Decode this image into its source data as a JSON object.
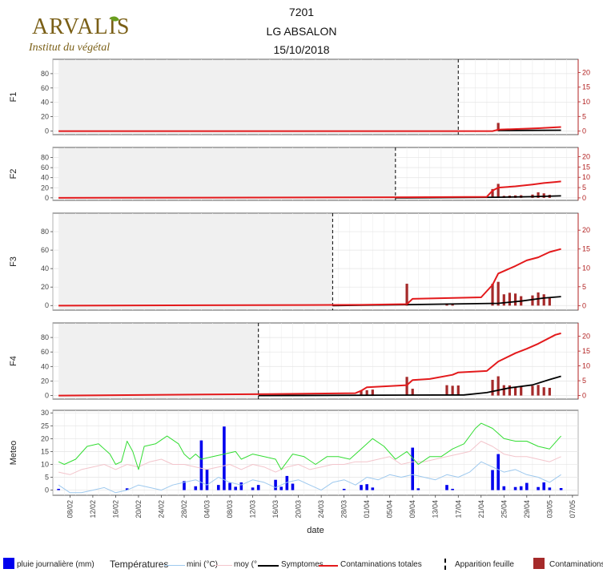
{
  "header": {
    "logo_text": "ARVALIS",
    "logo_sub": "Institut du végétal",
    "title_lines": [
      "7201",
      "LG ABSALON",
      "15/10/2018"
    ]
  },
  "colors": {
    "symptomes": "#000000",
    "contaminations_totales": "#e31a1c",
    "contaminations": "#a52a2a",
    "pluie": "#0000ee",
    "temp_mini": "#9ec9ee",
    "temp_moy": "#f3c5cc",
    "temp_maxi": "#33dd33",
    "shade": "#f0f0f0",
    "right_axis": "#b22222"
  },
  "legend": {
    "pluie": "pluie journalière (mm)",
    "temperatures_title": "Températures",
    "mini": "mini (°C)",
    "moy": "moy (°",
    "symptomes": "Symptomes",
    "contam_totales": "Contaminations totales",
    "apparition": "Apparition feuille",
    "contaminations": "Contaminations"
  },
  "chart_data": {
    "type": "line",
    "xlabel": "date",
    "x_range": [
      "2018-02-05",
      "2018-05-08"
    ],
    "x_ticks": [
      "08/02",
      "12/02",
      "16/02",
      "20/02",
      "24/02",
      "28/02",
      "04/03",
      "08/03",
      "12/03",
      "16/03",
      "20/03",
      "24/03",
      "28/03",
      "01/04",
      "05/04",
      "09/04",
      "13/04",
      "17/04",
      "21/04",
      "25/04",
      "29/04",
      "03/05",
      "07/05"
    ],
    "panels": [
      {
        "label": "F1",
        "left_ticks": [
          0,
          20,
          40,
          60,
          80
        ],
        "right_ticks": [
          0,
          5,
          10,
          15,
          20
        ],
        "left_range": [
          -5,
          100
        ],
        "right_range": [
          -1.2,
          24.5
        ],
        "apparition_feuille": "2018-04-17",
        "shade_range": [
          "2018-02-06",
          "2018-04-17"
        ],
        "contaminations_totales": {
          "x": [
            "2018-02-06",
            "2018-04-23",
            "2018-04-24",
            "2018-05-01",
            "2018-05-05"
          ],
          "y": [
            0,
            0,
            0.5,
            1.0,
            1.4
          ]
        },
        "symptomes": {
          "x": [
            "2018-04-24",
            "2018-05-05"
          ],
          "y": [
            0.2,
            0.3
          ]
        },
        "contaminations": {
          "x": [
            "2018-04-24"
          ],
          "y": [
            2.8
          ]
        }
      },
      {
        "label": "F2",
        "left_ticks": [
          0,
          20,
          40,
          60,
          80
        ],
        "right_ticks": [
          0,
          5,
          10,
          15,
          20
        ],
        "left_range": [
          -5,
          100
        ],
        "right_range": [
          -1.2,
          24.5
        ],
        "apparition_feuille": "2018-04-06",
        "shade_range": [
          "2018-02-06",
          "2018-04-06"
        ],
        "contaminations_totales": {
          "x": [
            "2018-02-06",
            "2018-04-08",
            "2018-04-22",
            "2018-04-23",
            "2018-04-24",
            "2018-04-27",
            "2018-04-30",
            "2018-05-02",
            "2018-05-04",
            "2018-05-05"
          ],
          "y": [
            0,
            0.3,
            0.5,
            3.5,
            5.0,
            5.6,
            6.5,
            7.2,
            7.7,
            8.0
          ]
        },
        "symptomes": {
          "x": [
            "2018-04-06",
            "2018-04-24",
            "2018-04-30",
            "2018-05-05"
          ],
          "y": [
            0,
            0.3,
            0.6,
            1.0
          ]
        },
        "contaminations": {
          "x": [
            "2018-04-23",
            "2018-04-24",
            "2018-04-25",
            "2018-04-26",
            "2018-04-27",
            "2018-04-28",
            "2018-04-30",
            "2018-05-01",
            "2018-05-02",
            "2018-05-03"
          ],
          "y": [
            4.3,
            6.8,
            1.0,
            1.1,
            1.2,
            1.3,
            1.6,
            2.7,
            2.2,
            1.5
          ]
        }
      },
      {
        "label": "F3",
        "left_ticks": [
          0,
          20,
          40,
          60,
          80
        ],
        "right_ticks": [
          0,
          5,
          10,
          15,
          20
        ],
        "left_range": [
          -5,
          100
        ],
        "right_range": [
          -1.2,
          24.5
        ],
        "apparition_feuille": "2018-03-26",
        "shade_range": [
          "2018-02-06",
          "2018-03-26"
        ],
        "contaminations_totales": {
          "x": [
            "2018-02-06",
            "2018-03-31",
            "2018-04-08",
            "2018-04-09",
            "2018-04-21",
            "2018-04-23",
            "2018-04-24",
            "2018-04-27",
            "2018-04-29",
            "2018-05-01",
            "2018-05-03",
            "2018-05-05"
          ],
          "y": [
            0,
            0.2,
            0.4,
            1.8,
            2.2,
            5.5,
            8.5,
            10.5,
            12.0,
            12.8,
            14.2,
            15.0
          ]
        },
        "symptomes": {
          "x": [
            "2018-03-26",
            "2018-04-24",
            "2018-04-28",
            "2018-05-02",
            "2018-05-05"
          ],
          "y": [
            0,
            0.6,
            1.2,
            2.0,
            2.4
          ]
        },
        "contaminations": {
          "x": [
            "2018-04-08",
            "2018-04-15",
            "2018-04-16",
            "2018-04-23",
            "2018-04-24",
            "2018-04-25",
            "2018-04-26",
            "2018-04-27",
            "2018-04-28",
            "2018-04-30",
            "2018-05-01",
            "2018-05-02",
            "2018-05-03"
          ],
          "y": [
            5.8,
            0.6,
            0.4,
            5.8,
            6.3,
            3.0,
            3.4,
            3.2,
            2.5,
            2.7,
            3.5,
            3.0,
            2.2
          ]
        }
      },
      {
        "label": "F4",
        "left_ticks": [
          0,
          20,
          40,
          60,
          80
        ],
        "right_ticks": [
          0,
          5,
          10,
          15,
          20
        ],
        "left_range": [
          -5,
          100
        ],
        "right_range": [
          -1.2,
          24.5
        ],
        "apparition_feuille": "2018-03-13",
        "shade_range": [
          "2018-02-06",
          "2018-03-13"
        ],
        "contaminations_totales": {
          "x": [
            "2018-02-06",
            "2018-03-15",
            "2018-03-30",
            "2018-03-31",
            "2018-04-01",
            "2018-04-08",
            "2018-04-09",
            "2018-04-12",
            "2018-04-16",
            "2018-04-17",
            "2018-04-22",
            "2018-04-24",
            "2018-04-27",
            "2018-04-29",
            "2018-05-01",
            "2018-05-04",
            "2018-05-05"
          ],
          "y": [
            0,
            0.5,
            0.8,
            1.6,
            2.8,
            3.5,
            5.2,
            5.6,
            7.0,
            7.8,
            8.3,
            11.5,
            14.3,
            15.8,
            17.5,
            20.5,
            21.0
          ]
        },
        "symptomes": {
          "x": [
            "2018-03-13",
            "2018-04-18",
            "2018-04-22",
            "2018-04-26",
            "2018-04-30",
            "2018-05-03",
            "2018-05-05"
          ],
          "y": [
            0,
            0.2,
            1.0,
            2.6,
            3.6,
            5.4,
            6.5
          ]
        },
        "contaminations": {
          "x": [
            "2018-03-31",
            "2018-04-01",
            "2018-04-02",
            "2018-04-08",
            "2018-04-09",
            "2018-04-15",
            "2018-04-16",
            "2018-04-17",
            "2018-04-23",
            "2018-04-24",
            "2018-04-25",
            "2018-04-26",
            "2018-04-27",
            "2018-04-28",
            "2018-04-30",
            "2018-05-01",
            "2018-05-02",
            "2018-05-03"
          ],
          "y": [
            1.5,
            1.8,
            2.0,
            6.3,
            2.3,
            3.5,
            3.3,
            3.4,
            5.3,
            6.5,
            3.5,
            3.4,
            3.0,
            3.0,
            3.3,
            3.6,
            2.8,
            2.6
          ]
        }
      }
    ],
    "meteo": {
      "label": "Meteo",
      "ticks": [
        0,
        5,
        10,
        15,
        20,
        25,
        30
      ],
      "range": [
        -2,
        31
      ],
      "pluie": {
        "x": [
          "2018-02-06",
          "2018-02-18",
          "2018-02-28",
          "2018-03-02",
          "2018-03-03",
          "2018-03-04",
          "2018-03-06",
          "2018-03-07",
          "2018-03-08",
          "2018-03-09",
          "2018-03-10",
          "2018-03-12",
          "2018-03-13",
          "2018-03-16",
          "2018-03-17",
          "2018-03-18",
          "2018-03-19",
          "2018-03-28",
          "2018-03-31",
          "2018-04-01",
          "2018-04-02",
          "2018-04-09",
          "2018-04-10",
          "2018-04-15",
          "2018-04-16",
          "2018-04-23",
          "2018-04-24",
          "2018-04-25",
          "2018-04-27",
          "2018-04-28",
          "2018-04-29",
          "2018-05-01",
          "2018-05-02",
          "2018-05-03",
          "2018-05-05"
        ],
        "y": [
          0.5,
          0.7,
          3.5,
          1.5,
          19.3,
          8.0,
          2.0,
          24.7,
          2.8,
          1.3,
          3.0,
          1.0,
          2.0,
          4.0,
          1.3,
          5.5,
          2.5,
          0.5,
          2.0,
          2.3,
          1.0,
          16.5,
          0.7,
          2.0,
          0.5,
          7.8,
          14.0,
          1.5,
          1.2,
          1.5,
          2.8,
          1.2,
          3.0,
          1.0,
          0.8
        ]
      },
      "temp_maxi": {
        "x": [
          "2018-02-06",
          "2018-02-07",
          "2018-02-09",
          "2018-02-11",
          "2018-02-13",
          "2018-02-15",
          "2018-02-16",
          "2018-02-17",
          "2018-02-18",
          "2018-02-19",
          "2018-02-20",
          "2018-02-21",
          "2018-02-23",
          "2018-02-25",
          "2018-02-27",
          "2018-02-28",
          "2018-03-01",
          "2018-03-02",
          "2018-03-03",
          "2018-03-05",
          "2018-03-07",
          "2018-03-09",
          "2018-03-10",
          "2018-03-12",
          "2018-03-14",
          "2018-03-16",
          "2018-03-17",
          "2018-03-19",
          "2018-03-21",
          "2018-03-23",
          "2018-03-25",
          "2018-03-27",
          "2018-03-29",
          "2018-03-31",
          "2018-04-02",
          "2018-04-04",
          "2018-04-06",
          "2018-04-08",
          "2018-04-10",
          "2018-04-12",
          "2018-04-14",
          "2018-04-16",
          "2018-04-18",
          "2018-04-20",
          "2018-04-21",
          "2018-04-23",
          "2018-04-25",
          "2018-04-27",
          "2018-04-29",
          "2018-05-01",
          "2018-05-03",
          "2018-05-05"
        ],
        "y": [
          11,
          10,
          12,
          17,
          18,
          14,
          10,
          11,
          19,
          15,
          8,
          17,
          18,
          21,
          18,
          14,
          12,
          14,
          12,
          13,
          14,
          15,
          12,
          14,
          13,
          12,
          8,
          14,
          13,
          10,
          13,
          13,
          12,
          16,
          20,
          17,
          12,
          15,
          10,
          13,
          13,
          16,
          18,
          24,
          26,
          24,
          20,
          19,
          19,
          17,
          16,
          21
        ]
      },
      "temp_moy": {
        "x": [
          "2018-02-06",
          "2018-02-08",
          "2018-02-10",
          "2018-02-12",
          "2018-02-14",
          "2018-02-16",
          "2018-02-18",
          "2018-02-20",
          "2018-02-22",
          "2018-02-24",
          "2018-02-26",
          "2018-02-28",
          "2018-03-02",
          "2018-03-04",
          "2018-03-06",
          "2018-03-08",
          "2018-03-10",
          "2018-03-12",
          "2018-03-14",
          "2018-03-16",
          "2018-03-18",
          "2018-03-20",
          "2018-03-22",
          "2018-03-24",
          "2018-03-26",
          "2018-03-28",
          "2018-03-30",
          "2018-04-01",
          "2018-04-03",
          "2018-04-05",
          "2018-04-07",
          "2018-04-09",
          "2018-04-11",
          "2018-04-13",
          "2018-04-15",
          "2018-04-17",
          "2018-04-19",
          "2018-04-21",
          "2018-04-23",
          "2018-04-25",
          "2018-04-27",
          "2018-04-29",
          "2018-05-01",
          "2018-05-03",
          "2018-05-05"
        ],
        "y": [
          7,
          6,
          8,
          9,
          10,
          8,
          10,
          9,
          11,
          12,
          10,
          10,
          9,
          8,
          9,
          10,
          8,
          10,
          9,
          7,
          9,
          10,
          8,
          9,
          10,
          10,
          11,
          11,
          12,
          13,
          10,
          11,
          11,
          12,
          13,
          14,
          15,
          19,
          17,
          14,
          13,
          13,
          12,
          11,
          13
        ]
      },
      "temp_mini": {
        "x": [
          "2018-02-06",
          "2018-02-08",
          "2018-02-10",
          "2018-02-12",
          "2018-02-14",
          "2018-02-16",
          "2018-02-18",
          "2018-02-20",
          "2018-02-22",
          "2018-02-24",
          "2018-02-26",
          "2018-02-28",
          "2018-03-02",
          "2018-03-04",
          "2018-03-06",
          "2018-03-08",
          "2018-03-10",
          "2018-03-12",
          "2018-03-14",
          "2018-03-16",
          "2018-03-18",
          "2018-03-20",
          "2018-03-22",
          "2018-03-24",
          "2018-03-26",
          "2018-03-28",
          "2018-03-30",
          "2018-04-01",
          "2018-04-03",
          "2018-04-05",
          "2018-04-07",
          "2018-04-09",
          "2018-04-11",
          "2018-04-13",
          "2018-04-15",
          "2018-04-17",
          "2018-04-19",
          "2018-04-21",
          "2018-04-23",
          "2018-04-25",
          "2018-04-27",
          "2018-04-29",
          "2018-05-01",
          "2018-05-03",
          "2018-05-05"
        ],
        "y": [
          2,
          -1,
          -1,
          0,
          1,
          -1,
          0,
          2,
          1,
          0,
          2,
          3,
          4,
          2,
          5,
          3,
          2,
          4,
          3,
          1,
          3,
          4,
          2,
          0,
          3,
          4,
          2,
          5,
          4,
          6,
          5,
          6,
          5,
          4,
          6,
          5,
          7,
          11,
          9,
          7,
          8,
          6,
          5,
          3,
          6
        ]
      }
    }
  }
}
